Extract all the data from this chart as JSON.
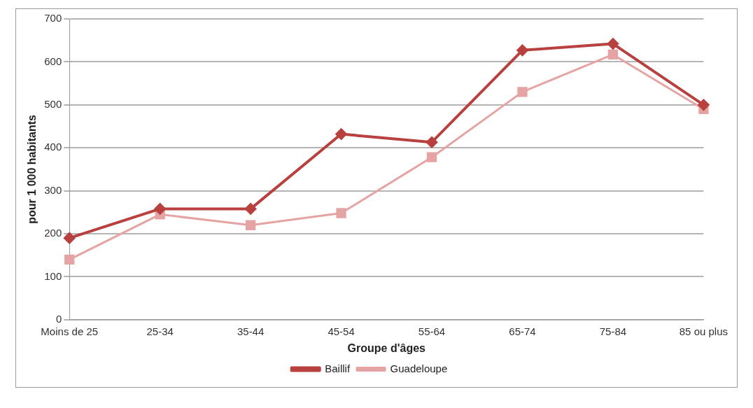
{
  "chart_data": {
    "type": "line",
    "xlabel": "Groupe d'âges",
    "ylabel": "pour 1 000 habitants",
    "categories": [
      "Moins de 25",
      "25-34",
      "35-44",
      "45-54",
      "55-64",
      "65-74",
      "75-84",
      "85 ou plus"
    ],
    "series": [
      {
        "name": "Baillif",
        "color": "#b8403f",
        "marker": "diamond",
        "values": [
          190,
          258,
          258,
          432,
          413,
          627,
          642,
          500
        ]
      },
      {
        "name": "Guadeloupe",
        "color": "#e5a3a3",
        "marker": "square",
        "values": [
          140,
          245,
          220,
          248,
          378,
          530,
          617,
          490
        ]
      }
    ],
    "ylim": [
      0,
      700
    ],
    "yticks": [
      0,
      100,
      200,
      300,
      400,
      500,
      600,
      700
    ],
    "grid": "y",
    "legend": "bottom",
    "line_style": "solid"
  }
}
